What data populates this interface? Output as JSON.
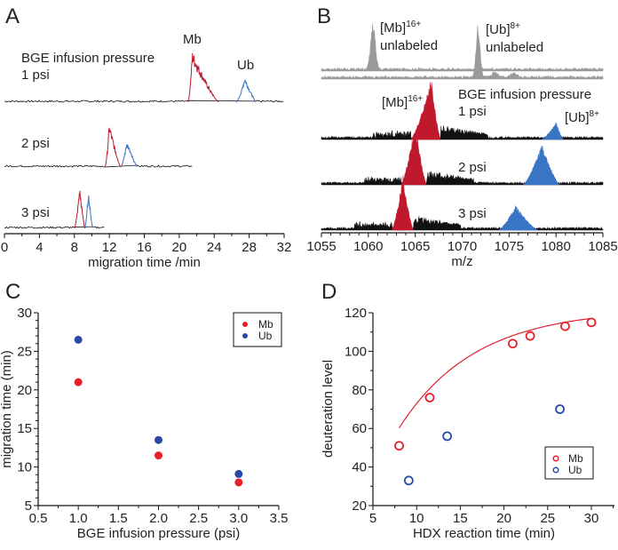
{
  "colors": {
    "mb": "#c0192d",
    "ub": "#3a74c4",
    "mb_point": "#e8202a",
    "ub_point": "#2a4aa8",
    "fit": "#e02030",
    "gray": "#9a9a9a",
    "black": "#111111"
  },
  "chart_data": [
    {
      "panel": "A",
      "type": "line",
      "title": "",
      "annotations": [
        "BGE infusion pressure",
        "1 psi",
        "2 psi",
        "3 psi",
        "Mb",
        "Ub"
      ],
      "xlabel": "migration time /min",
      "ylabel": "",
      "xlim": [
        0,
        32
      ],
      "xticks": [
        "0",
        "4",
        "8",
        "12",
        "16",
        "20",
        "24",
        "28",
        "32"
      ],
      "series": [
        {
          "name": "1 psi",
          "trace_end": 32,
          "mb_peak": {
            "start": 21,
            "apex": 21.5,
            "end": 24.5,
            "height": 1.0
          },
          "ub_peak": {
            "start": 26.5,
            "apex": 27.5,
            "end": 28.8,
            "height": 0.5
          }
        },
        {
          "name": "2 psi",
          "trace_end": 21.5,
          "mb_peak": {
            "start": 11.5,
            "apex": 12,
            "end": 13.3,
            "height": 1.0
          },
          "ub_peak": {
            "start": 13.3,
            "apex": 14,
            "end": 15.2,
            "height": 0.6
          }
        },
        {
          "name": "3 psi",
          "trace_end": 11.5,
          "mb_peak": {
            "start": 8,
            "apex": 8.6,
            "end": 9.2,
            "height": 1.0
          },
          "ub_peak": {
            "start": 9.2,
            "apex": 9.6,
            "end": 10.1,
            "height": 0.9
          }
        }
      ]
    },
    {
      "panel": "B",
      "type": "line",
      "title": "",
      "annotations": [
        "[Mb]16+ unlabeled",
        "[Ub]8+ unlabeled",
        "[Mb]16+",
        "[Ub]8+",
        "BGE infusion pressure",
        "1 psi",
        "2 psi",
        "3 psi"
      ],
      "xlabel": "m/z",
      "ylabel": "",
      "xlim": [
        1055,
        1085
      ],
      "xticks": [
        "1055",
        "1060",
        "1065",
        "1070",
        "1075",
        "1080",
        "1085"
      ],
      "series": [
        {
          "name": "unlabeled",
          "mb_peak": 1060.5,
          "ub_peak": 1071.7
        },
        {
          "name": "1 psi",
          "mb_range": [
            1064.5,
            1067.7
          ],
          "mb_apex": 1066.7,
          "ub_range": [
            1078.5,
            1080.8
          ],
          "ub_apex": 1080
        },
        {
          "name": "2 psi",
          "mb_range": [
            1063.5,
            1066.2
          ],
          "mb_apex": 1065,
          "ub_range": [
            1076.5,
            1080.4
          ],
          "ub_apex": 1078.5
        },
        {
          "name": "3 psi",
          "mb_range": [
            1062.5,
            1064.8
          ],
          "mb_apex": 1063.7,
          "ub_range": [
            1073.9,
            1078.1
          ],
          "ub_apex": 1075.7
        }
      ]
    },
    {
      "panel": "C",
      "type": "scatter",
      "title": "",
      "xlabel": "BGE infusion pressure (psi)",
      "ylabel": "migration time (min)",
      "xlim": [
        0.5,
        3.5
      ],
      "ylim": [
        5,
        30
      ],
      "xticks": [
        "0.5",
        "1.0",
        "1.5",
        "2.0",
        "2.5",
        "3.0",
        "3.5"
      ],
      "yticks": [
        "5",
        "10",
        "15",
        "20",
        "25",
        "30"
      ],
      "legend": "top-right",
      "series": [
        {
          "name": "Mb",
          "x": [
            1.0,
            2.0,
            3.0
          ],
          "y": [
            21.0,
            11.5,
            8.0
          ]
        },
        {
          "name": "Ub",
          "x": [
            1.0,
            2.0,
            3.0
          ],
          "y": [
            26.5,
            13.5,
            9.1
          ]
        }
      ]
    },
    {
      "panel": "D",
      "type": "scatter",
      "title": "",
      "xlabel": "HDX reaction time (min)",
      "ylabel": "deuteration level",
      "xlim": [
        5,
        32
      ],
      "ylim": [
        20,
        120
      ],
      "xticks": [
        "5",
        "10",
        "15",
        "20",
        "25",
        "30"
      ],
      "yticks": [
        "20",
        "40",
        "60",
        "80",
        "100",
        "120"
      ],
      "legend": "bottom-right",
      "series": [
        {
          "name": "Mb",
          "x": [
            8.0,
            11.5,
            21.0,
            23.0,
            27.0,
            30.0
          ],
          "y": [
            51,
            76,
            104,
            108,
            113,
            115
          ],
          "fit": true
        },
        {
          "name": "Ub",
          "x": [
            9.1,
            13.5,
            26.4
          ],
          "y": [
            33,
            56,
            70
          ]
        }
      ]
    }
  ]
}
